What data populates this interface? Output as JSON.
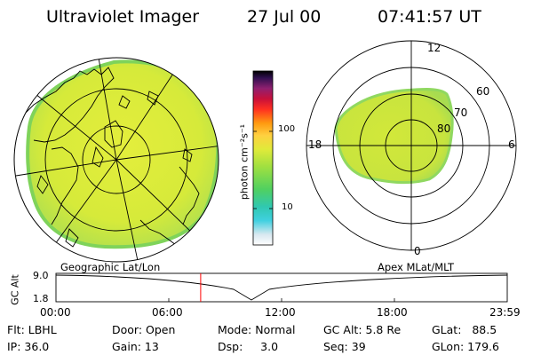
{
  "header": {
    "instrument": "Ultraviolet Imager",
    "date": "27 Jul 00",
    "time": "07:41:57 UT"
  },
  "left_panel": {
    "label": "Geographic Lat/Lon"
  },
  "right_panel": {
    "label": "Apex MLat/MLT",
    "mlt_labels": [
      "12",
      "6",
      "0",
      "18"
    ],
    "mlat_labels": [
      "60",
      "70",
      "80"
    ]
  },
  "colorbar": {
    "unit_label": "photon cm⁻²s⁻¹",
    "ticks": [
      "100",
      "10"
    ]
  },
  "timeline": {
    "ylabel": "GC Alt",
    "ytick_top": "9.0",
    "ytick_bottom": "1.8",
    "xticks": [
      "00:00",
      "06:00",
      "12:00",
      "18:00",
      "23:59"
    ],
    "current_time_fraction": 0.3207
  },
  "status": {
    "flt": "Flt: LBHL",
    "ip": "IP: 36.0",
    "door": "Door: Open",
    "gain": "Gain: 13",
    "mode": "Mode: Normal",
    "dsp": "Dsp:     3.0",
    "gcalt": "GC Alt: 5.8 Re",
    "seq": "Seq: 39",
    "glat": "GLat:   88.5",
    "glon": "GLon: 179.6"
  },
  "colors": {
    "aurora_main": "#d4ea3a",
    "aurora_edge": "#7fd35a",
    "red_marker": "#ff0000"
  }
}
